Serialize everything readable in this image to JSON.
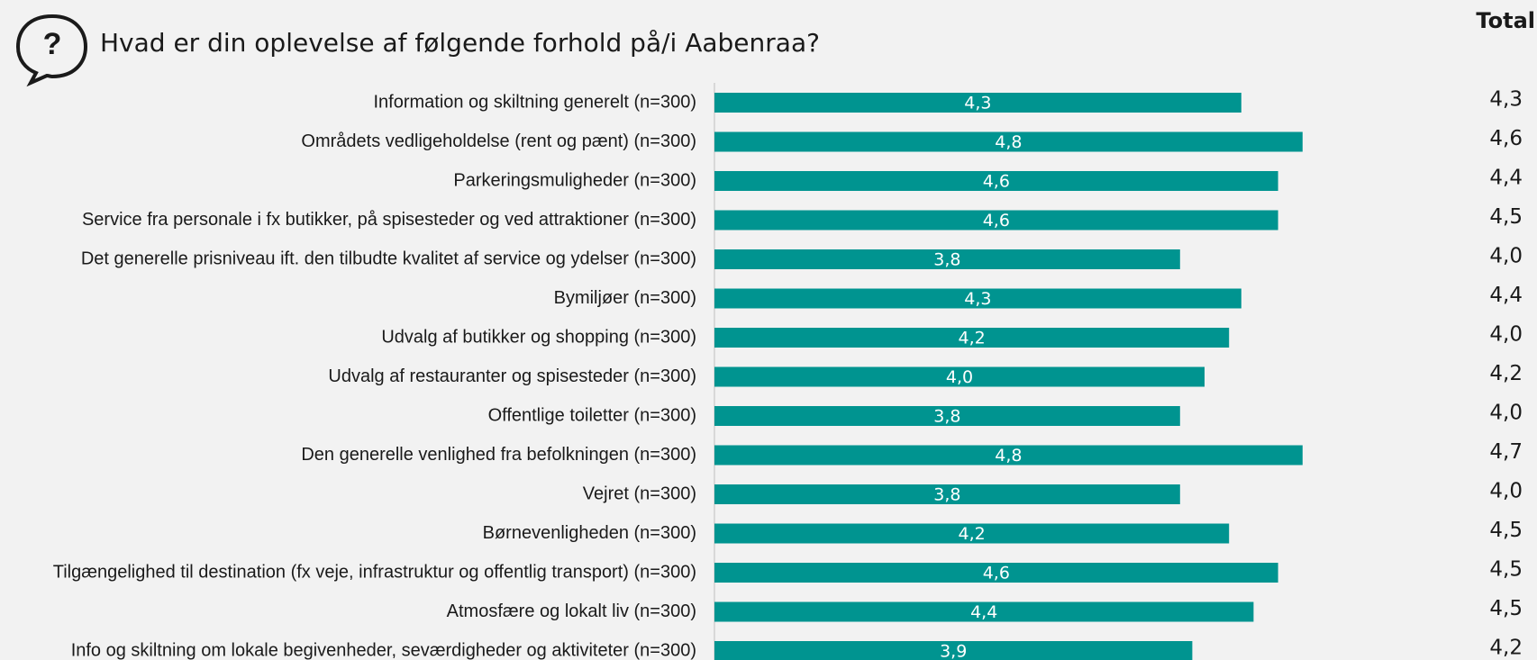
{
  "chart_data": {
    "type": "bar",
    "orientation": "horizontal",
    "icon": "?",
    "title": "Hvad er din oplevelse af følgende forhold på/i Aabenraa?",
    "categories": [
      "Information og skiltning generelt (n=300)",
      "Områdets vedligeholdelse (rent og pænt) (n=300)",
      "Parkeringsmuligheder (n=300)",
      "Service fra personale i fx butikker, på spisesteder og ved attraktioner (n=300)",
      "Det generelle prisniveau ift. den tilbudte kvalitet af service og ydelser (n=300)",
      "Bymiljøer (n=300)",
      "Udvalg af butikker og shopping (n=300)",
      "Udvalg af restauranter og spisesteder (n=300)",
      "Offentlige toiletter (n=300)",
      "Den generelle venlighed fra befolkningen (n=300)",
      "Vejret (n=300)",
      "Børnevenligheden (n=300)",
      "Tilgængelighed til destination (fx veje, infrastruktur og offentlig transport) (n=300)",
      "Atmosfære og lokalt liv (n=300)",
      "Info og skiltning om lokale begivenheder, seværdigheder og aktiviteter (n=300)"
    ],
    "values": [
      4.3,
      4.8,
      4.6,
      4.6,
      3.8,
      4.3,
      4.2,
      4.0,
      3.8,
      4.8,
      3.8,
      4.2,
      4.6,
      4.4,
      3.9
    ],
    "value_labels": [
      "4,3",
      "4,8",
      "4,6",
      "4,6",
      "3,8",
      "4,3",
      "4,2",
      "4,0",
      "3,8",
      "4,8",
      "3,8",
      "4,2",
      "4,6",
      "4,4",
      "3,9"
    ],
    "color": "#009490",
    "xlim": [
      0,
      5
    ],
    "totals": {
      "title": "Total",
      "labels": [
        "4,3",
        "4,6",
        "4,4",
        "4,5",
        "4,0",
        "4,4",
        "4,0",
        "4,2",
        "4,0",
        "4,7",
        "4,0",
        "4,5",
        "4,5",
        "4,5",
        "4,2"
      ]
    }
  }
}
